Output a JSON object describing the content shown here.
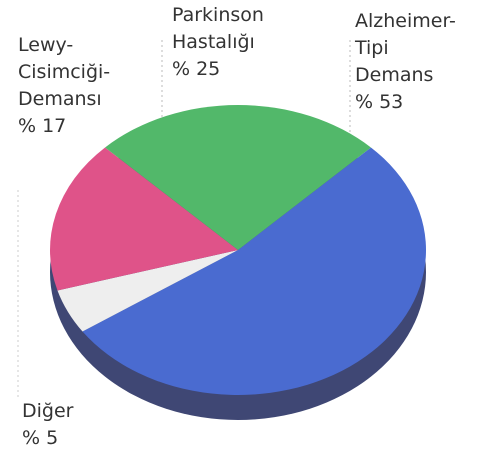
{
  "chart_data": {
    "type": "pie",
    "categories": [
      "Alzheimer-\nTipi\nDemans",
      "Diğer",
      "Lewy-\nCisimciği-\nDemansı",
      "Parkinson\nHastalığı"
    ],
    "values": [
      53,
      5,
      17,
      25
    ],
    "value_labels": [
      "% 53",
      "% 5",
      "% 17",
      "% 25"
    ],
    "colors": [
      "#4a6bd0",
      "#eeeeee",
      "#df5389",
      "#52b86a"
    ]
  }
}
